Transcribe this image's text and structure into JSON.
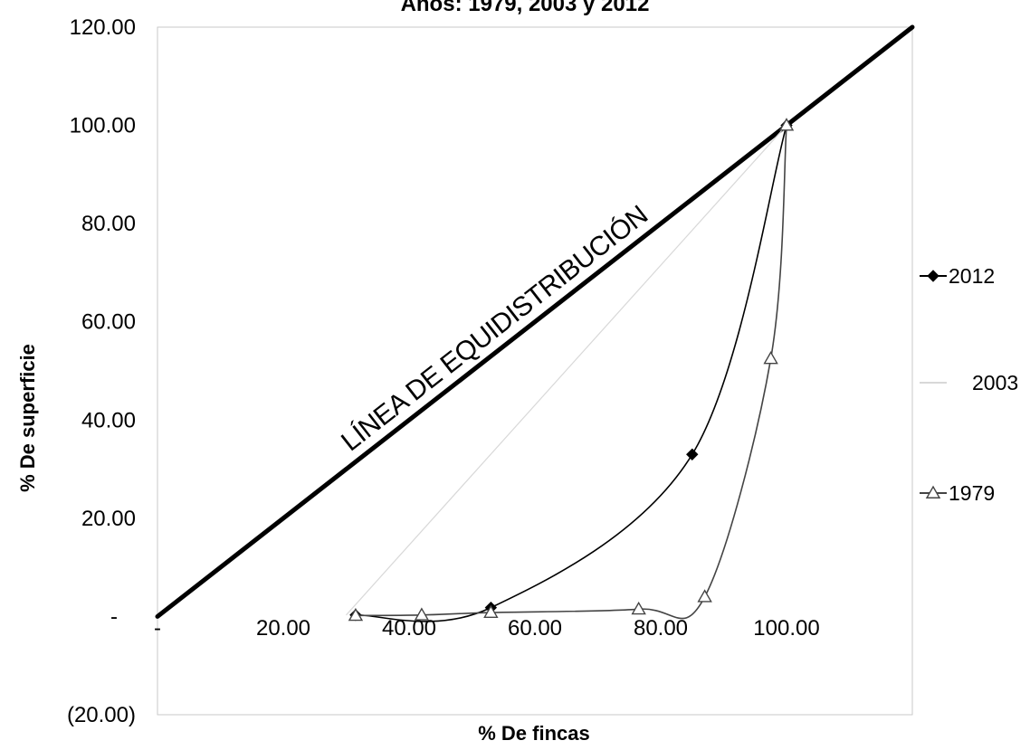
{
  "chart_data": {
    "type": "line",
    "title": "Años: 1979, 2003 y 2012",
    "xlabel": "% De fincas",
    "ylabel": "% De superficie",
    "xlim": [
      0,
      120
    ],
    "ylim": [
      -20,
      120
    ],
    "x_ticks": [
      {
        "value": 0,
        "label": "-"
      },
      {
        "value": 20,
        "label": "20.00"
      },
      {
        "value": 40,
        "label": "40.00"
      },
      {
        "value": 60,
        "label": "60.00"
      },
      {
        "value": 80,
        "label": "80.00"
      },
      {
        "value": 100,
        "label": "100.00"
      }
    ],
    "y_ticks": [
      {
        "value": -20,
        "label": "(20.00)"
      },
      {
        "value": 0,
        "label": "-"
      },
      {
        "value": 20,
        "label": "20.00"
      },
      {
        "value": 40,
        "label": "40.00"
      },
      {
        "value": 60,
        "label": "60.00"
      },
      {
        "value": 80,
        "label": "80.00"
      },
      {
        "value": 100,
        "label": "100.00"
      },
      {
        "value": 120,
        "label": "120.00"
      }
    ],
    "annotation": "LÍNEA DE EQUIDISTRIBUCIÓN",
    "equidistribution_line": {
      "x": [
        0,
        120
      ],
      "y": [
        0,
        120
      ]
    },
    "grid": false,
    "legend_position": "right",
    "series": [
      {
        "name": "2012",
        "marker": "diamond",
        "color": "#000000",
        "points": [
          [
            31.5,
            0.3
          ],
          [
            53,
            1.8
          ],
          [
            85,
            33
          ],
          [
            100,
            100
          ]
        ]
      },
      {
        "name": "2003",
        "marker": "none",
        "color": "#d8d8d8",
        "points": [
          [
            30,
            0.3
          ],
          [
            100,
            100
          ]
        ]
      },
      {
        "name": "1979",
        "marker": "triangle",
        "color": "#444444",
        "points": [
          [
            31.5,
            0.2
          ],
          [
            42,
            0.3
          ],
          [
            53,
            0.8
          ],
          [
            76.5,
            1.5
          ],
          [
            87,
            4
          ],
          [
            97.5,
            52.5
          ],
          [
            100,
            100
          ]
        ]
      }
    ]
  }
}
